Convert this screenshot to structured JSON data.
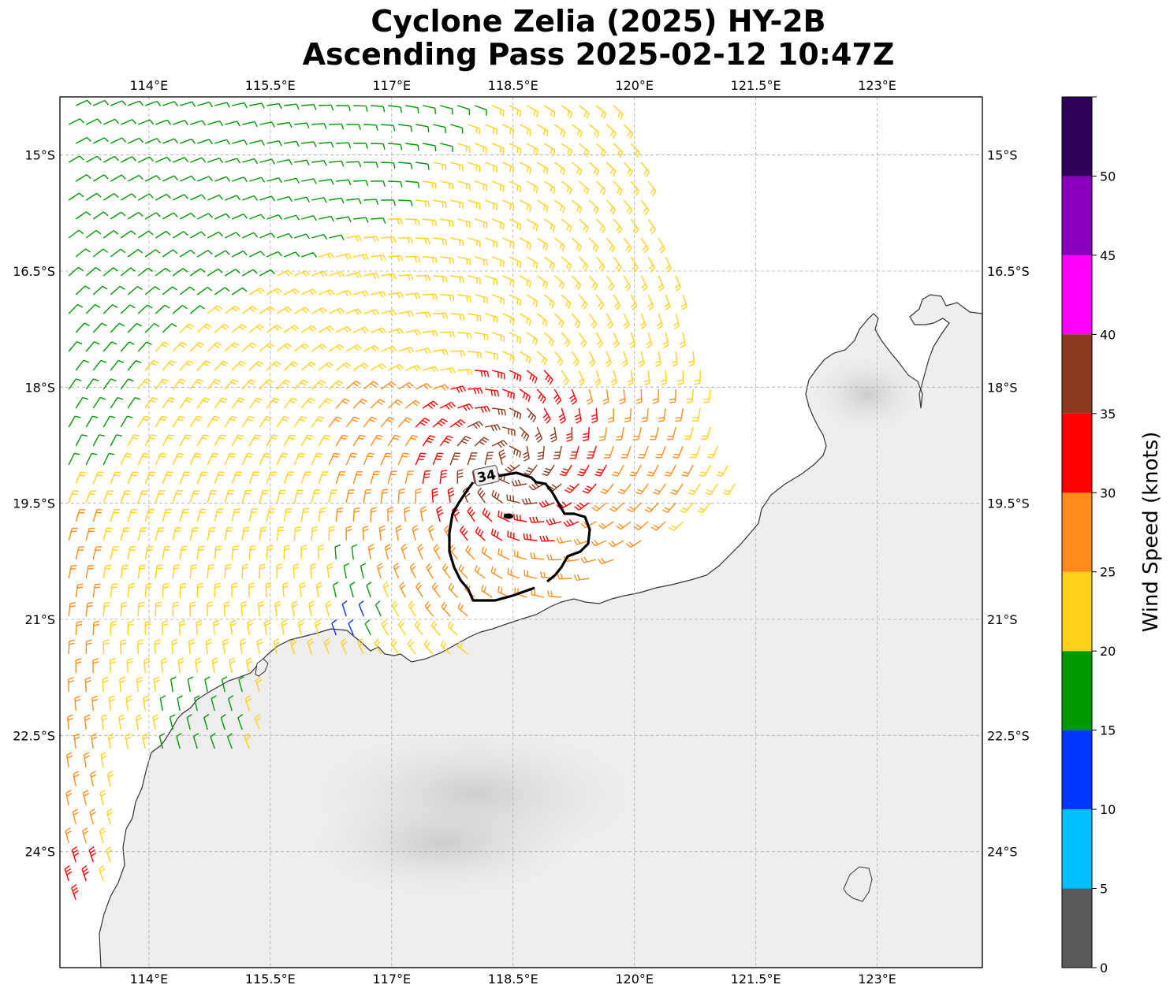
{
  "title_line1": "Cyclone Zelia (2025) HY-2B",
  "title_line2": "Ascending Pass 2025-02-12 10:47Z",
  "map": {
    "lon_range": [
      112.9,
      124.3
    ],
    "lat_range": [
      -25.5,
      -14.25
    ],
    "lon_ticks": [
      114,
      115.5,
      117,
      118.5,
      120,
      121.5,
      123
    ],
    "lon_tick_labels": [
      "114°E",
      "115.5°E",
      "117°E",
      "118.5°E",
      "120°E",
      "121.5°E",
      "123°E"
    ],
    "lat_ticks": [
      -15,
      -16.5,
      -18,
      -19.5,
      -21,
      -22.5,
      -24
    ],
    "lat_tick_labels": [
      "15°S",
      "16.5°S",
      "18°S",
      "19.5°S",
      "21°S",
      "22.5°S",
      "24°S"
    ],
    "gridlines": true,
    "background": "grey infrared imagery over land",
    "contour_label": "34",
    "storm_center": {
      "lon": 118.45,
      "lat": -18.93
    }
  },
  "colorbar": {
    "label": "Wind Speed (knots)",
    "bounds": [
      0,
      5,
      10,
      15,
      20,
      25,
      30,
      35,
      40,
      45,
      50,
      55
    ],
    "tick_labels": [
      "0",
      "5",
      "10",
      "15",
      "20",
      "25",
      "30",
      "35",
      "40",
      "45",
      "50"
    ],
    "colors": [
      "#595959",
      "#00bfff",
      "#0033ff",
      "#009900",
      "#ffd11a",
      "#ff8c1a",
      "#ff0000",
      "#8b3a1e",
      "#ff00ff",
      "#8800bb",
      "#2e0057"
    ]
  },
  "chart_data": {
    "type": "wind barb map",
    "title": "Cyclone Zelia (2025) HY-2B Ascending Pass 2025-02-12 10:47Z",
    "units": "knots",
    "swath_speed_ranges": [
      {
        "region": "north-west",
        "speed_kt": "15-20",
        "color": "#009900"
      },
      {
        "region": "central band",
        "speed_kt": "20-25",
        "color": "#ffd11a"
      },
      {
        "region": "outer storm ring / west edge",
        "speed_kt": "25-30",
        "color": "#ff8c1a"
      },
      {
        "region": "storm ring",
        "speed_kt": "30-35",
        "color": "#ff0000"
      },
      {
        "region": "storm core",
        "speed_kt": "35-40",
        "color": "#8b3a1e"
      },
      {
        "region": "near coast",
        "speed_kt": "10-15",
        "color": "#0033ff"
      }
    ],
    "contour_kt": 34
  }
}
